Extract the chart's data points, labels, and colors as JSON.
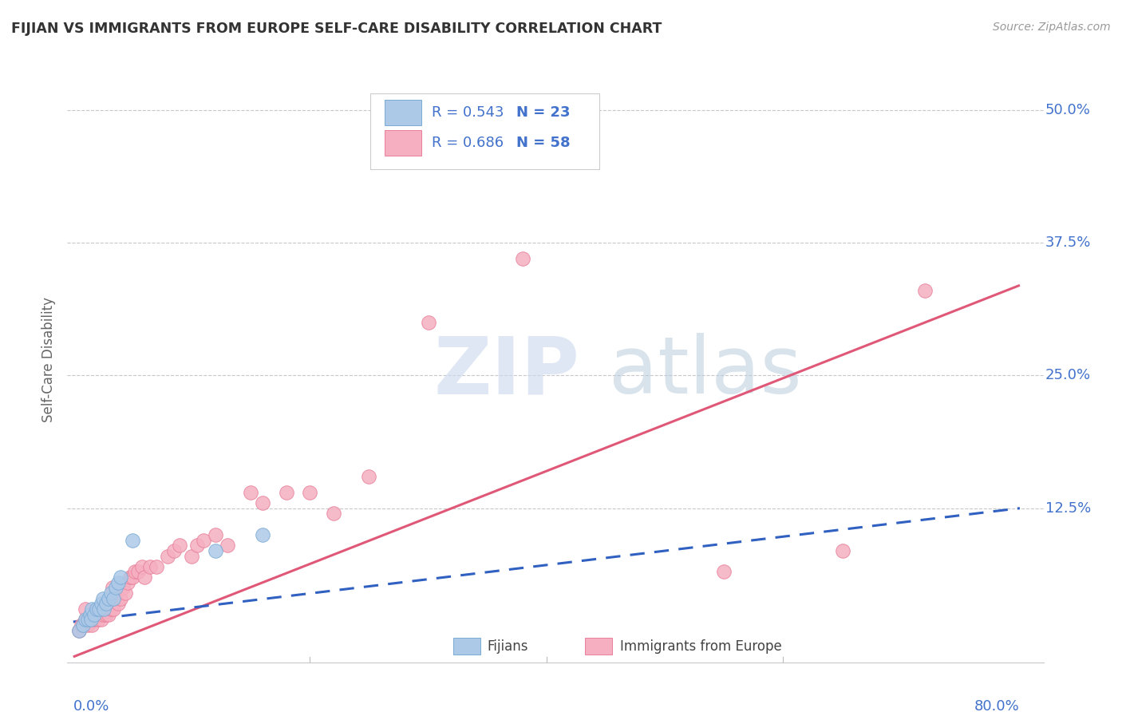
{
  "title": "FIJIAN VS IMMIGRANTS FROM EUROPE SELF-CARE DISABILITY CORRELATION CHART",
  "source": "Source: ZipAtlas.com",
  "ylabel": "Self-Care Disability",
  "yticks": [
    "50.0%",
    "37.5%",
    "25.0%",
    "12.5%"
  ],
  "ytick_vals": [
    0.5,
    0.375,
    0.25,
    0.125
  ],
  "xlim": [
    -0.005,
    0.82
  ],
  "ylim": [
    -0.02,
    0.55
  ],
  "legend_r_blue": "R = 0.543",
  "legend_n_blue": "N = 23",
  "legend_r_pink": "R = 0.686",
  "legend_n_pink": "N = 58",
  "blue_scatter_color": "#adc9e8",
  "pink_scatter_color": "#f5afc0",
  "blue_edge_color": "#7aaad4",
  "pink_edge_color": "#e8809a",
  "blue_line_color": "#3060c0",
  "pink_line_color": "#e05878",
  "legend_text_color": "#4272cc",
  "watermark_zip_color": "#ccd8ee",
  "watermark_atlas_color": "#b8ccdd",
  "pink_line_x0": 0.0,
  "pink_line_y0": -0.015,
  "pink_line_x1": 0.8,
  "pink_line_y1": 0.335,
  "blue_line_x0": 0.0,
  "blue_line_y0": 0.018,
  "blue_line_x1": 0.8,
  "blue_line_y1": 0.125,
  "fijians_x": [
    0.005,
    0.008,
    0.01,
    0.012,
    0.014,
    0.015,
    0.016,
    0.018,
    0.02,
    0.022,
    0.024,
    0.025,
    0.026,
    0.028,
    0.03,
    0.032,
    0.034,
    0.036,
    0.038,
    0.04,
    0.05,
    0.12,
    0.16
  ],
  "fijians_y": [
    0.01,
    0.015,
    0.02,
    0.02,
    0.025,
    0.02,
    0.03,
    0.025,
    0.03,
    0.03,
    0.035,
    0.04,
    0.03,
    0.035,
    0.04,
    0.045,
    0.04,
    0.05,
    0.055,
    0.06,
    0.095,
    0.085,
    0.1
  ],
  "europe_x": [
    0.005,
    0.007,
    0.008,
    0.01,
    0.01,
    0.012,
    0.013,
    0.015,
    0.015,
    0.016,
    0.017,
    0.018,
    0.02,
    0.021,
    0.022,
    0.023,
    0.024,
    0.025,
    0.026,
    0.028,
    0.03,
    0.031,
    0.032,
    0.033,
    0.034,
    0.036,
    0.038,
    0.04,
    0.042,
    0.044,
    0.046,
    0.048,
    0.05,
    0.052,
    0.055,
    0.058,
    0.06,
    0.065,
    0.07,
    0.08,
    0.085,
    0.09,
    0.1,
    0.105,
    0.11,
    0.12,
    0.13,
    0.15,
    0.16,
    0.18,
    0.2,
    0.22,
    0.25,
    0.3,
    0.38,
    0.55,
    0.65,
    0.72
  ],
  "europe_y": [
    0.01,
    0.015,
    0.015,
    0.02,
    0.03,
    0.015,
    0.02,
    0.02,
    0.025,
    0.015,
    0.025,
    0.02,
    0.025,
    0.02,
    0.025,
    0.03,
    0.02,
    0.025,
    0.03,
    0.025,
    0.025,
    0.04,
    0.03,
    0.05,
    0.03,
    0.04,
    0.035,
    0.04,
    0.05,
    0.045,
    0.055,
    0.06,
    0.06,
    0.065,
    0.065,
    0.07,
    0.06,
    0.07,
    0.07,
    0.08,
    0.085,
    0.09,
    0.08,
    0.09,
    0.095,
    0.1,
    0.09,
    0.14,
    0.13,
    0.14,
    0.14,
    0.12,
    0.155,
    0.3,
    0.36,
    0.065,
    0.085,
    0.33
  ]
}
